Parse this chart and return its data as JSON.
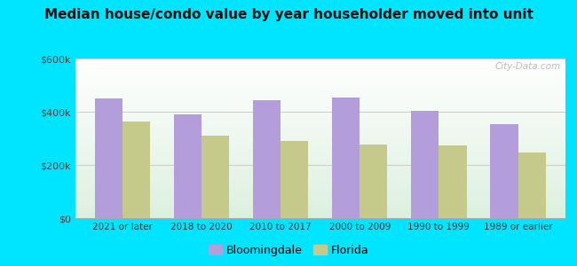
{
  "title": "Median house/condo value by year householder moved into unit",
  "categories": [
    "2021 or later",
    "2018 to 2020",
    "2010 to 2017",
    "2000 to 2009",
    "1990 to 1999",
    "1989 or earlier"
  ],
  "bloomingdale": [
    450000,
    390000,
    445000,
    455000,
    405000,
    355000
  ],
  "florida": [
    365000,
    310000,
    290000,
    278000,
    272000,
    248000
  ],
  "bloomingdale_color": "#b39ddb",
  "florida_color": "#c5c98a",
  "background_outer": "#00e5ff",
  "ylim": [
    0,
    600000
  ],
  "yticks": [
    0,
    200000,
    400000,
    600000
  ],
  "ytick_labels": [
    "$0",
    "$200k",
    "$400k",
    "$600k"
  ],
  "bar_width": 0.35,
  "title_fontsize": 11,
  "watermark": "City-Data.com",
  "legend_labels": [
    "Bloomingdale",
    "Florida"
  ]
}
